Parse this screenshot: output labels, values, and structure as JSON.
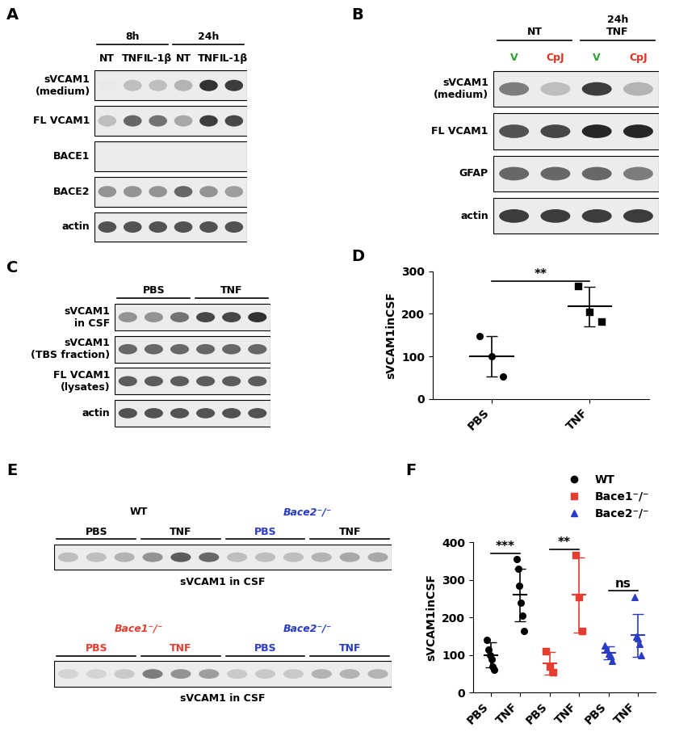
{
  "blots": [
    {
      "panel": "A",
      "lanes": [
        "NT",
        "TNF",
        "IL-1β",
        "NT",
        "TNF",
        "IL-1β"
      ],
      "headers": [
        [
          {
            "label": "8h",
            "lanes": [
              0,
              2
            ]
          },
          {
            "label": "24h",
            "lanes": [
              3,
              5
            ]
          }
        ]
      ],
      "rows": [
        {
          "label": "sVCAM1\n(medium)",
          "bands": [
            0.1,
            0.3,
            0.3,
            0.35,
            0.95,
            0.9
          ]
        },
        {
          "label": "FL VCAM1",
          "bands": [
            0.3,
            0.7,
            0.65,
            0.4,
            0.9,
            0.85
          ]
        },
        {
          "label": "BACE1",
          "bands": [
            0,
            0,
            0,
            0,
            0,
            0
          ]
        },
        {
          "label": "BACE2",
          "bands": [
            0.5,
            0.5,
            0.5,
            0.7,
            0.5,
            0.45
          ]
        },
        {
          "label": "actin",
          "bands": [
            0.8,
            0.8,
            0.8,
            0.8,
            0.8,
            0.8
          ]
        }
      ]
    },
    {
      "panel": "B",
      "lanes": [
        "V",
        "CpJ",
        "V",
        "CpJ"
      ],
      "colors": [
        "#2ca02c",
        "#e0301e",
        "#2ca02c",
        "#e0301e"
      ],
      "headers": [
        [
          {
            "label": "NT",
            "lanes": [
              0,
              1
            ]
          },
          {
            "label": "24h\nTNF",
            "lanes": [
              2,
              3
            ]
          }
        ]
      ],
      "rows": [
        {
          "label": "sVCAM1\n(medium)",
          "bands": [
            0.6,
            0.3,
            0.9,
            0.35
          ]
        },
        {
          "label": "FL VCAM1",
          "bands": [
            0.8,
            0.85,
            1.0,
            1.0
          ]
        },
        {
          "label": "GFAP",
          "bands": [
            0.7,
            0.7,
            0.7,
            0.6
          ]
        },
        {
          "label": "actin",
          "bands": [
            0.9,
            0.9,
            0.9,
            0.9
          ]
        }
      ]
    },
    {
      "panel": "C",
      "headers": [
        [
          {
            "label": "PBS",
            "lanes": [
              0,
              2
            ]
          },
          {
            "label": "TNF",
            "lanes": [
              3,
              5
            ]
          }
        ]
      ],
      "rows": [
        {
          "label": "sVCAM1\nin CSF",
          "bands": [
            0.5,
            0.5,
            0.65,
            0.85,
            0.85,
            0.95
          ]
        },
        {
          "label": "sVCAM1\n(TBS fraction)",
          "bands": [
            0.7,
            0.7,
            0.7,
            0.7,
            0.7,
            0.7
          ]
        },
        {
          "label": "FL VCAM1\n(lysates)",
          "bands": [
            0.75,
            0.75,
            0.75,
            0.75,
            0.75,
            0.75
          ]
        },
        {
          "label": "actin",
          "bands": [
            0.8,
            0.8,
            0.8,
            0.8,
            0.8,
            0.8
          ]
        }
      ]
    },
    {
      "panel": "E",
      "headers": [
        [
          {
            "label": "PBS",
            "lanes": [
              0,
              2
            ]
          },
          {
            "label": "TNF",
            "lanes": [
              3,
              5
            ]
          },
          {
            "label": "PBS",
            "lanes": [
              6,
              8
            ],
            "color": "#2a3cc6"
          },
          {
            "label": "TNF",
            "lanes": [
              9,
              11
            ]
          }
        ],
        [
          {
            "label": "WT",
            "lanes": [
              0,
              5
            ],
            "line": false
          },
          {
            "label": "Bace2⁻/⁻",
            "lanes": [
              6,
              11
            ],
            "line": false,
            "color": "#2a3cc6",
            "italic": true
          }
        ]
      ],
      "rows": [
        {
          "label": null,
          "bands": [
            0.3,
            0.3,
            0.35,
            0.5,
            0.75,
            0.7,
            0.3,
            0.3,
            0.3,
            0.35,
            0.4,
            0.4
          ]
        }
      ],
      "caption": "sVCAM1 in CSF"
    },
    {
      "panel": null,
      "headers": [
        [
          {
            "label": "PBS",
            "lanes": [
              0,
              2
            ],
            "color": "#e53d2f"
          },
          {
            "label": "TNF",
            "lanes": [
              3,
              5
            ],
            "color": "#e53d2f"
          },
          {
            "label": "PBS",
            "lanes": [
              6,
              8
            ],
            "color": "#2a3cc6"
          },
          {
            "label": "TNF",
            "lanes": [
              9,
              11
            ],
            "color": "#2a3cc6"
          }
        ],
        [
          {
            "label": "Bace1⁻/⁻",
            "lanes": [
              0,
              5
            ],
            "line": false,
            "color": "#e53d2f",
            "italic": true
          },
          {
            "label": "Bace2⁻/⁻",
            "lanes": [
              6,
              11
            ],
            "line": false,
            "color": "#2a3cc6",
            "italic": true
          }
        ]
      ],
      "rows": [
        {
          "label": null,
          "bands": [
            0.2,
            0.2,
            0.25,
            0.6,
            0.5,
            0.45,
            0.25,
            0.25,
            0.25,
            0.35,
            0.35,
            0.35
          ]
        }
      ],
      "caption": "sVCAM1 in CSF"
    }
  ],
  "chart_data": [
    {
      "panel": "D",
      "type": "scatter",
      "y_label": "sVCAM1inCSF",
      "categories": [
        "PBS",
        "TNF"
      ],
      "ylim": [
        0,
        300
      ],
      "yticks": [
        0,
        100,
        200,
        300
      ],
      "series": [
        {
          "color": "#000000",
          "marker": "circle",
          "values": [
            [
              148,
              100,
              52
            ],
            null
          ],
          "mean": [
            100,
            null
          ],
          "sd": [
            47,
            null
          ]
        },
        {
          "color": "#000000",
          "marker": "square",
          "values": [
            null,
            [
              265,
              205,
              182
            ]
          ],
          "mean": [
            null,
            217
          ],
          "sd": [
            null,
            47
          ]
        }
      ],
      "annotations": [
        {
          "text": "**",
          "between": [
            0,
            1
          ]
        }
      ]
    },
    {
      "panel": "F",
      "type": "scatter",
      "y_label": "sVCAM1inCSF",
      "categories": [
        "PBS",
        "TNF",
        "PBS",
        "TNF",
        "PBS",
        "TNF"
      ],
      "ylim": [
        0,
        400
      ],
      "yticks": [
        0,
        100,
        200,
        300,
        400
      ],
      "legend": "upper right",
      "series": [
        {
          "name": "WT",
          "color": "#000000",
          "marker": "circle",
          "values": [
            [
              140,
              115,
              100,
              90,
              70,
              60
            ],
            [
              355,
              330,
              285,
              240,
              205,
              165
            ],
            null,
            null,
            null,
            null
          ],
          "mean": [
            100,
            260,
            null,
            null,
            null,
            null
          ],
          "sd": [
            33,
            70,
            null,
            null,
            null,
            null
          ]
        },
        {
          "name": "Bace1⁻/⁻",
          "color": "#e53d2f",
          "marker": "square",
          "values": [
            null,
            null,
            [
              110,
              70,
              55
            ],
            [
              365,
              255,
              165
            ],
            null,
            null
          ],
          "mean": [
            null,
            null,
            78,
            260,
            null,
            null
          ],
          "sd": [
            null,
            null,
            30,
            100,
            null,
            null
          ]
        },
        {
          "name": "Bace2⁻/⁻",
          "color": "#2a3cc6",
          "marker": "triangle",
          "values": [
            null,
            null,
            null,
            null,
            [
              125,
              115,
              105,
              100,
              85
            ],
            [
              255,
              150,
              145,
              130,
              100
            ]
          ],
          "mean": [
            null,
            null,
            null,
            null,
            107,
            153
          ],
          "sd": [
            null,
            null,
            null,
            null,
            17,
            57
          ]
        }
      ],
      "annotations": [
        {
          "text": "***",
          "between": [
            0,
            1
          ]
        },
        {
          "text": "**",
          "between": [
            2,
            3
          ]
        },
        {
          "text": "ns",
          "between": [
            4,
            5
          ]
        }
      ]
    }
  ]
}
